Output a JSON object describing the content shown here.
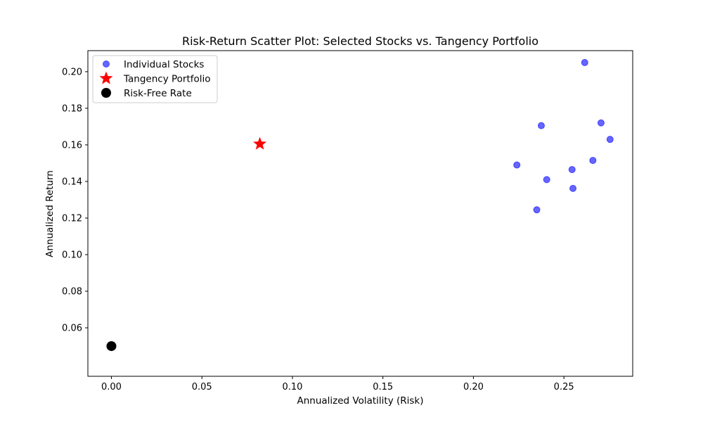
{
  "chart_data": {
    "type": "scatter",
    "title": "Risk-Return Scatter Plot: Selected Stocks vs. Tangency Portfolio",
    "xlabel": "Annualized Volatility (Risk)",
    "ylabel": "Annualized Return",
    "xlim": [
      -0.013,
      0.288
    ],
    "ylim": [
      0.0335,
      0.2115
    ],
    "xticks": [
      0.0,
      0.05,
      0.1,
      0.15,
      0.2,
      0.25
    ],
    "xtick_labels": [
      "0.00",
      "0.05",
      "0.10",
      "0.15",
      "0.20",
      "0.25"
    ],
    "yticks": [
      0.06,
      0.08,
      0.1,
      0.12,
      0.14,
      0.16,
      0.18,
      0.2
    ],
    "ytick_labels": [
      "0.06",
      "0.08",
      "0.10",
      "0.12",
      "0.14",
      "0.16",
      "0.18",
      "0.20"
    ],
    "grid": false,
    "legend_position": "top-left",
    "series": [
      {
        "name": "Individual Stocks",
        "marker": "circle",
        "color": "#0000ff",
        "alpha": 0.6,
        "points": [
          {
            "x": 0.2615,
            "y": 0.205
          },
          {
            "x": 0.2375,
            "y": 0.1705
          },
          {
            "x": 0.2705,
            "y": 0.172
          },
          {
            "x": 0.2755,
            "y": 0.163
          },
          {
            "x": 0.266,
            "y": 0.1515
          },
          {
            "x": 0.224,
            "y": 0.149
          },
          {
            "x": 0.2545,
            "y": 0.1465
          },
          {
            "x": 0.2405,
            "y": 0.141
          },
          {
            "x": 0.255,
            "y": 0.1362
          },
          {
            "x": 0.235,
            "y": 0.1245
          }
        ]
      },
      {
        "name": "Tangency Portfolio",
        "marker": "star",
        "color": "#ff0000",
        "points": [
          {
            "x": 0.082,
            "y": 0.1605
          }
        ]
      },
      {
        "name": "Risk-Free Rate",
        "marker": "circle-large",
        "color": "#000000",
        "points": [
          {
            "x": 0.0,
            "y": 0.05
          }
        ]
      }
    ]
  }
}
